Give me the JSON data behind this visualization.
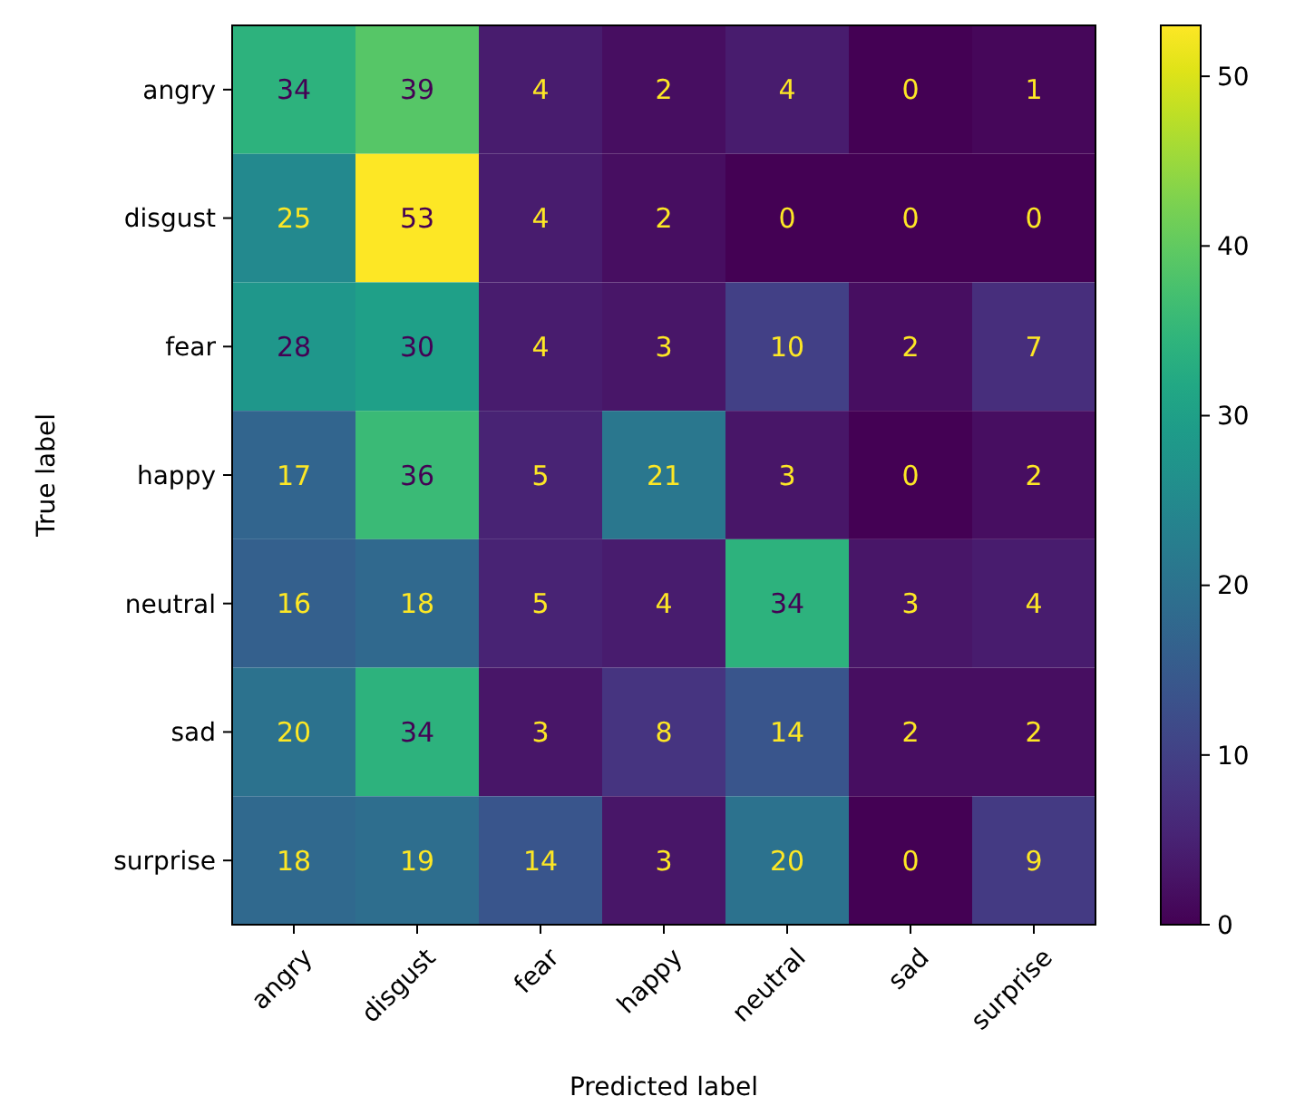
{
  "chart_data": {
    "type": "heatmap",
    "xlabel": "Predicted label",
    "ylabel": "True label",
    "categories": [
      "angry",
      "disgust",
      "fear",
      "happy",
      "neutral",
      "sad",
      "surprise"
    ],
    "y_categories": [
      "angry",
      "disgust",
      "fear",
      "happy",
      "neutral",
      "sad",
      "surprise"
    ],
    "cells": [
      [
        34,
        39,
        4,
        2,
        4,
        0,
        1
      ],
      [
        25,
        53,
        4,
        2,
        0,
        0,
        0
      ],
      [
        28,
        30,
        4,
        3,
        10,
        2,
        7
      ],
      [
        17,
        36,
        5,
        21,
        3,
        0,
        2
      ],
      [
        16,
        18,
        5,
        4,
        34,
        3,
        4
      ],
      [
        20,
        34,
        3,
        8,
        14,
        2,
        2
      ],
      [
        18,
        19,
        14,
        3,
        20,
        0,
        9
      ]
    ],
    "data_labels": true,
    "clim": [
      0,
      53
    ],
    "cticks": [
      0,
      10,
      20,
      30,
      40,
      50
    ]
  }
}
